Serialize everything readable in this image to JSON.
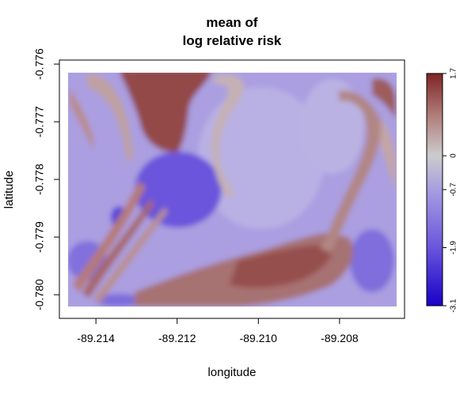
{
  "chart_data": {
    "type": "heatmap",
    "title_lines": [
      "mean of",
      "log relative risk"
    ],
    "xlabel": "longitude",
    "ylabel": "latitude",
    "x_ticks": [
      -89.214,
      -89.212,
      -89.21,
      -89.208
    ],
    "x_tick_labels": [
      "-89.214",
      "-89.212",
      "-89.210",
      "-89.208"
    ],
    "y_ticks": [
      -0.776,
      -0.777,
      -0.778,
      -0.779,
      -0.78
    ],
    "y_tick_labels": [
      "-0.776",
      "-0.777",
      "-0.778",
      "-0.779",
      "-0.780"
    ],
    "xlim": [
      -89.2149,
      -89.2064
    ],
    "ylim": [
      -0.78041,
      -0.77593
    ],
    "data_x_range": [
      -89.2148,
      -89.2066
    ],
    "data_y_range": [
      -0.78026,
      -0.77612
    ],
    "colorbar": {
      "range": [
        -3.1,
        1.7
      ],
      "ticks": [
        1.7,
        0,
        -0.7,
        -1.9,
        -3.1
      ],
      "tick_labels": [
        "1.7",
        "0",
        "-0.7",
        "-1.9",
        "-3.1"
      ],
      "colors": {
        "high": "#8c2c2c",
        "mid": "#cccccc",
        "low": "#1a00c8"
      }
    },
    "grid": false,
    "legend": "right"
  }
}
